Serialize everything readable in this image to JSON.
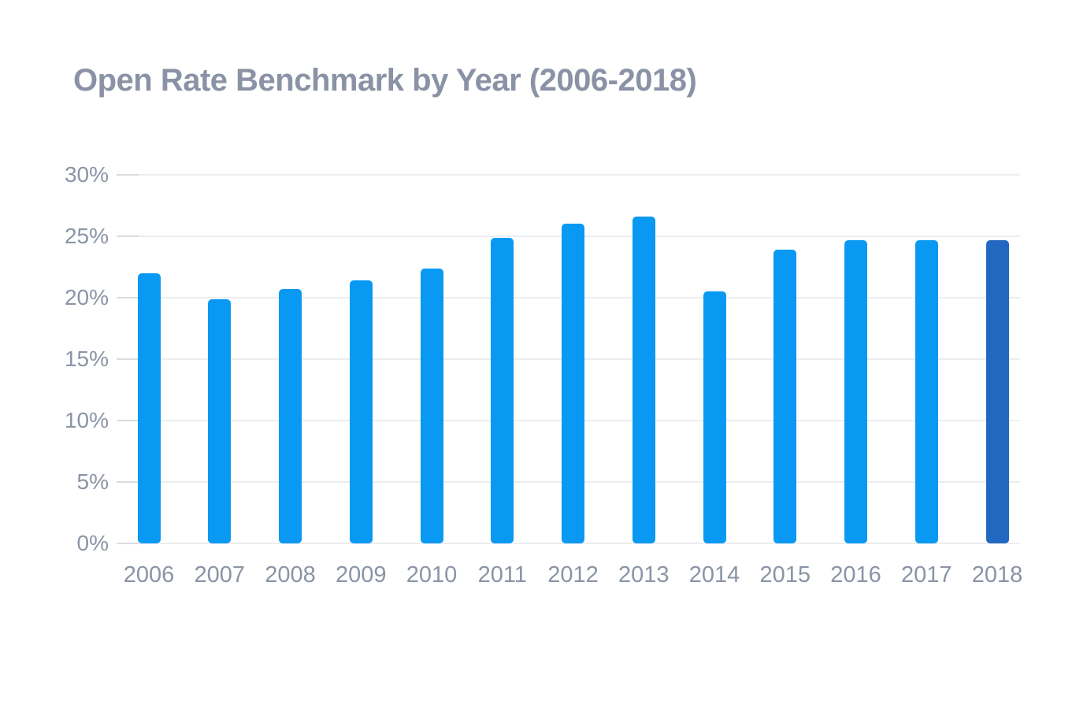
{
  "page": {
    "background": "#FFFFFF"
  },
  "chart_data": {
    "type": "bar",
    "title": "Open Rate Benchmark by Year (2006-2018)",
    "xlabel": "",
    "ylabel": "",
    "unit": "%",
    "categories": [
      "2006",
      "2007",
      "2008",
      "2009",
      "2010",
      "2011",
      "2012",
      "2013",
      "2014",
      "2015",
      "2016",
      "2017",
      "2018"
    ],
    "values": [
      22.0,
      19.9,
      20.7,
      21.4,
      22.4,
      24.9,
      26.0,
      26.6,
      20.5,
      23.9,
      24.7,
      24.7,
      24.7
    ],
    "highlight_category": "2018",
    "ylim": [
      0,
      30
    ],
    "ytick_values": [
      30,
      25,
      20,
      15,
      10,
      5,
      0
    ],
    "ytick_labels": [
      "30%",
      "25%",
      "20%",
      "15%",
      "10%",
      "5%",
      "0%"
    ],
    "grid": true,
    "legend_position": "none",
    "colors": {
      "bar": "#0A99F2",
      "bar_highlight": "#2368C0",
      "title": "#8A93A5",
      "axis_labels": "#8A94A6",
      "gridline": "#EBEDF1",
      "axis_tick": "#D9DDE2",
      "background": "#FFFFFF"
    }
  }
}
